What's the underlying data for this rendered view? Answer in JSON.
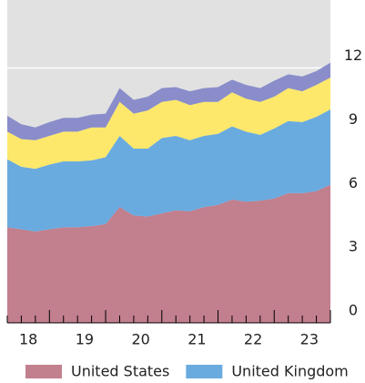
{
  "chart_data": {
    "type": "stacked-area",
    "x": [
      2018.125,
      2018.375,
      2018.625,
      2018.875,
      2019.125,
      2019.375,
      2019.625,
      2019.875,
      2020.125,
      2020.375,
      2020.625,
      2020.875,
      2021.125,
      2021.375,
      2021.625,
      2021.875,
      2022.125,
      2022.375,
      2022.625,
      2022.875,
      2023.125,
      2023.375,
      2023.625,
      2023.875
    ],
    "xlim": [
      2018.125,
      2023.875
    ],
    "xticks": [
      {
        "value": 2018.5,
        "label": "18"
      },
      {
        "value": 2019.5,
        "label": "19"
      },
      {
        "value": 2020.5,
        "label": "20"
      },
      {
        "value": 2021.5,
        "label": "21"
      },
      {
        "value": 2022.5,
        "label": "22"
      },
      {
        "value": 2023.5,
        "label": "23"
      }
    ],
    "ylim": [
      0,
      15.2
    ],
    "yticks": [
      0,
      3,
      6,
      9,
      12
    ],
    "grid": true,
    "series": [
      {
        "name": "United States",
        "color": "#c27f8d",
        "values": [
          4.5,
          4.4,
          4.3,
          4.4,
          4.5,
          4.5,
          4.55,
          4.65,
          5.45,
          5.05,
          5.0,
          5.15,
          5.3,
          5.25,
          5.45,
          5.55,
          5.8,
          5.7,
          5.75,
          5.85,
          6.1,
          6.1,
          6.2,
          6.5
        ]
      },
      {
        "name": "United Kingdom",
        "color": "#6aabdf",
        "values": [
          3.2,
          2.95,
          2.95,
          3.05,
          3.1,
          3.1,
          3.1,
          3.15,
          3.35,
          3.15,
          3.2,
          3.55,
          3.5,
          3.35,
          3.35,
          3.35,
          3.45,
          3.3,
          3.1,
          3.3,
          3.4,
          3.35,
          3.5,
          3.55
        ]
      },
      {
        "color": "#fde86c",
        "values": [
          1.3,
          1.3,
          1.35,
          1.35,
          1.4,
          1.4,
          1.55,
          1.4,
          1.6,
          1.65,
          1.8,
          1.7,
          1.7,
          1.65,
          1.6,
          1.5,
          1.6,
          1.55,
          1.55,
          1.5,
          1.55,
          1.45,
          1.5,
          1.5
        ]
      },
      {
        "color": "#8a8dca",
        "values": [
          0.75,
          0.7,
          0.6,
          0.65,
          0.65,
          0.65,
          0.6,
          0.65,
          0.65,
          0.65,
          0.65,
          0.65,
          0.6,
          0.65,
          0.65,
          0.7,
          0.6,
          0.65,
          0.65,
          0.75,
          0.65,
          0.7,
          0.65,
          0.7
        ]
      }
    ]
  }
}
